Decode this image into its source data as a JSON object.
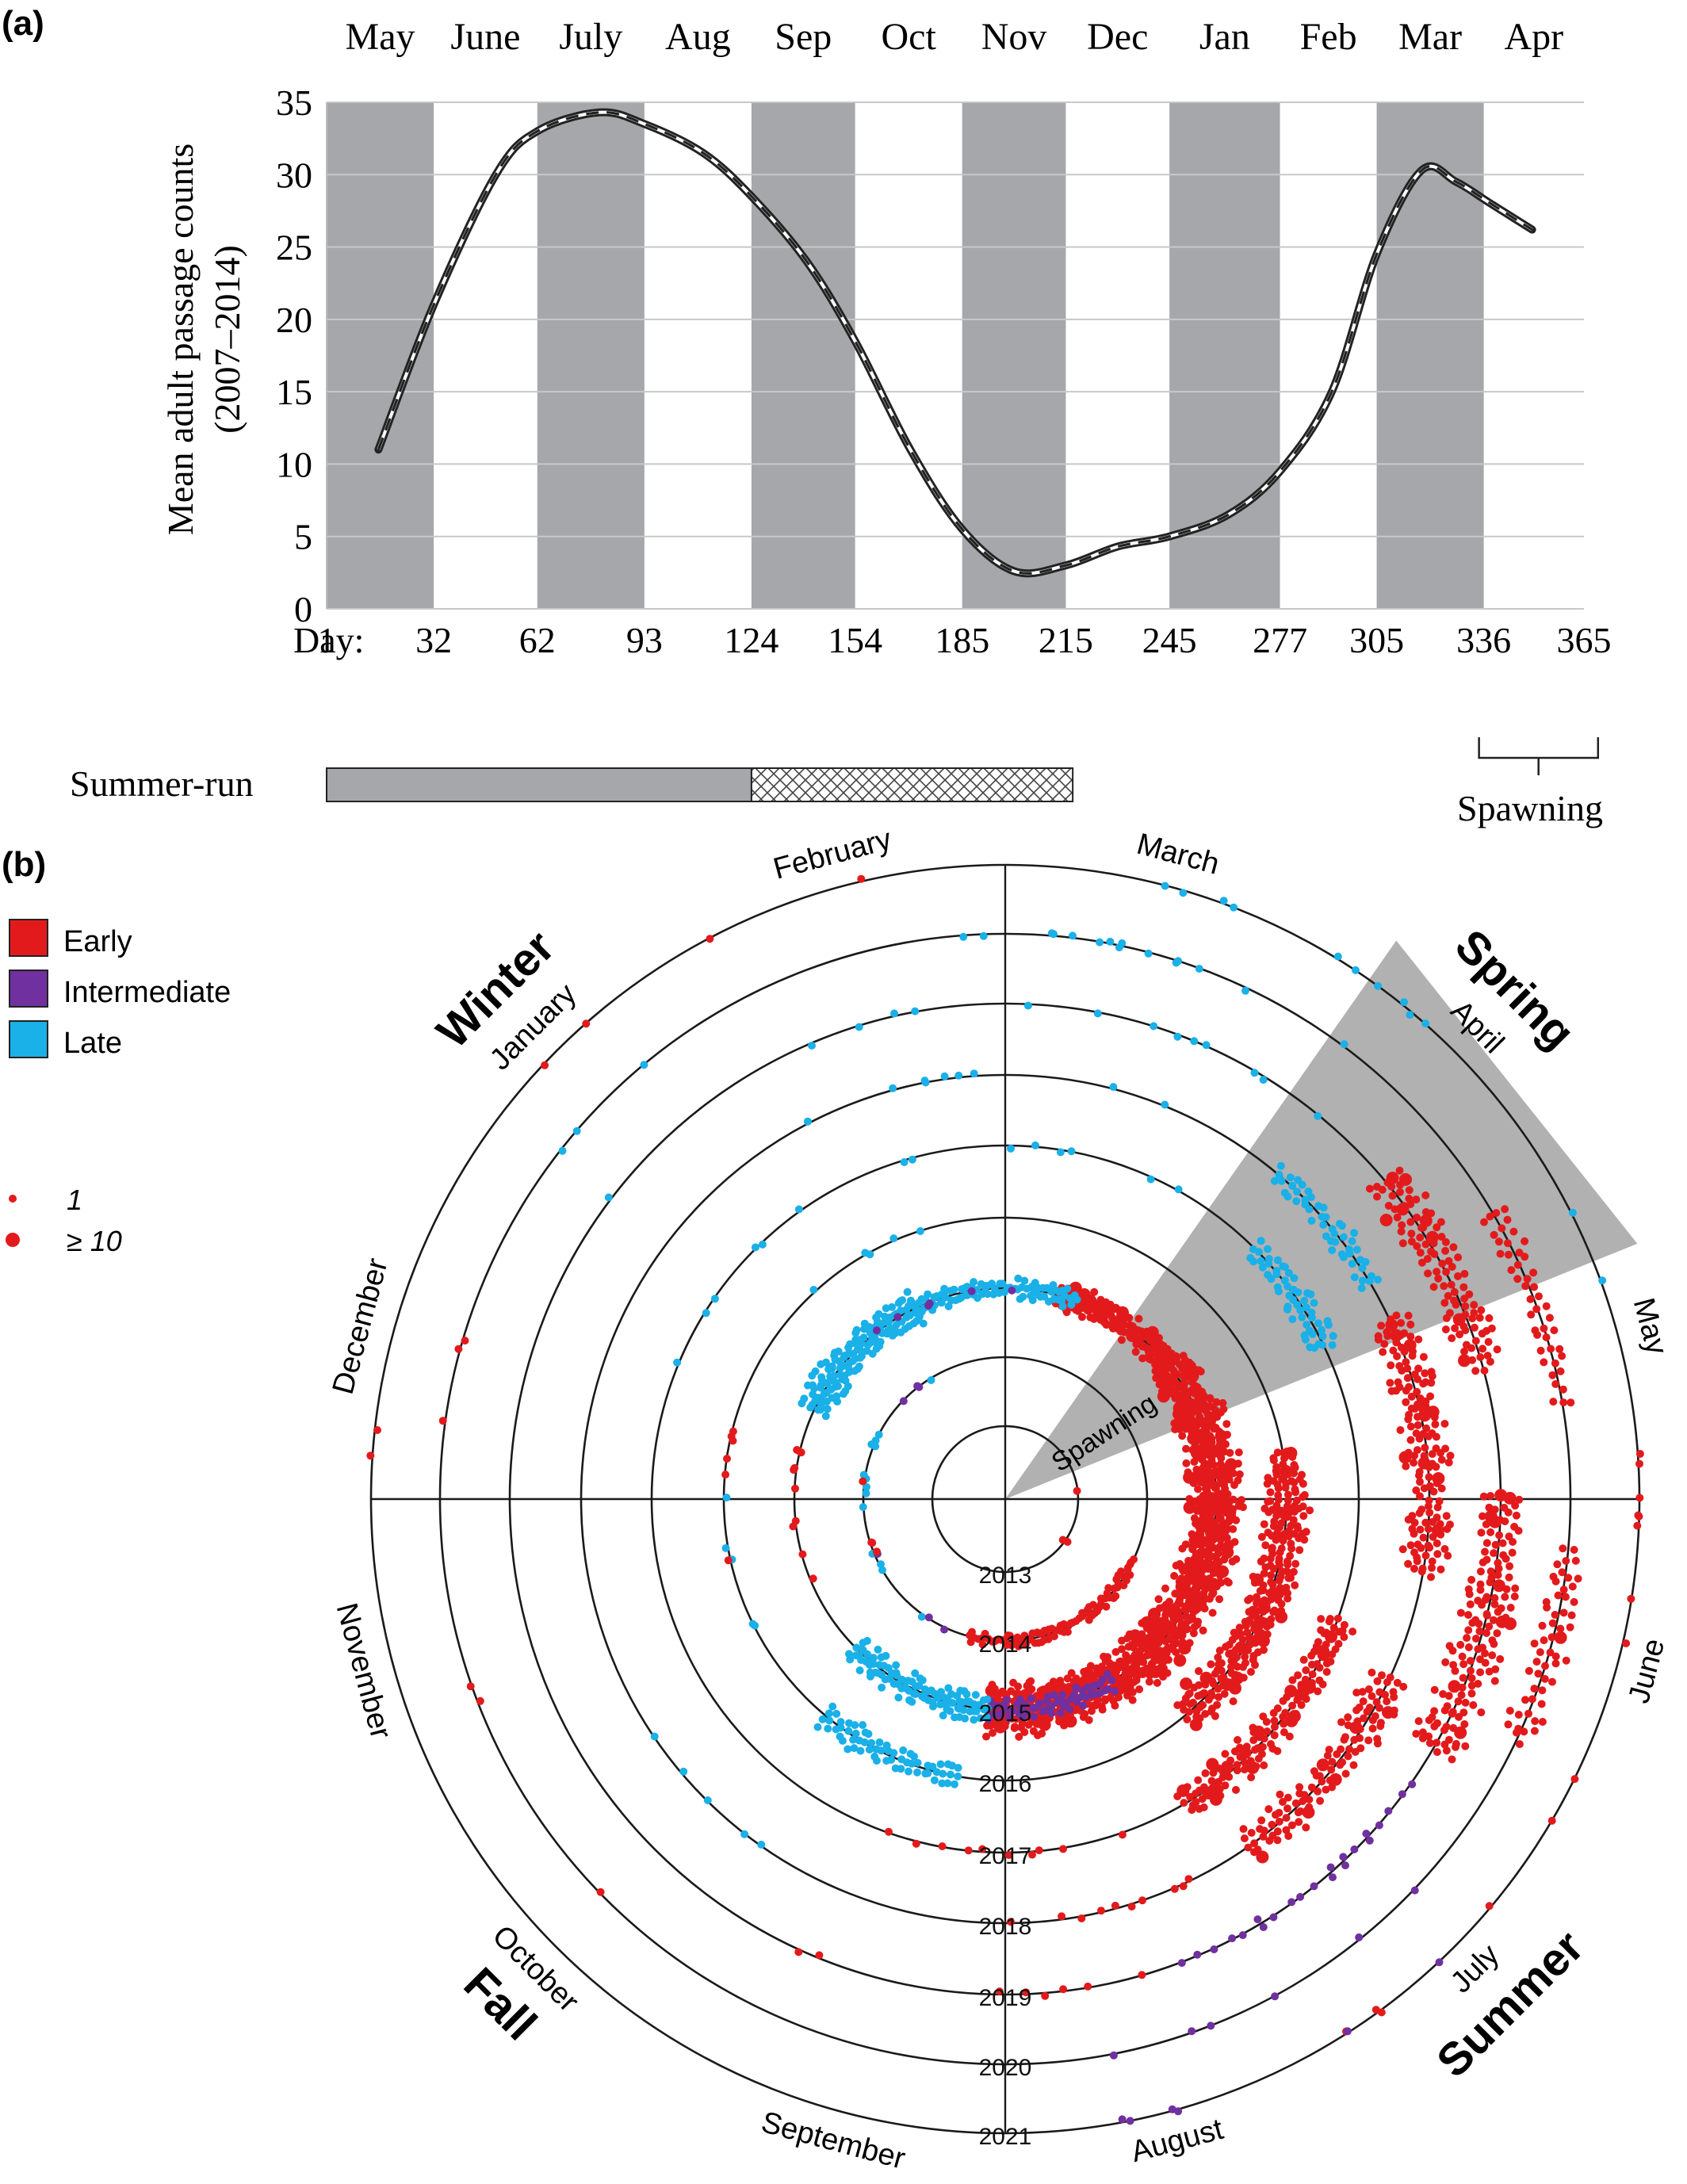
{
  "panel_a": {
    "label": "(a)",
    "ylabel_line1": "Mean adult passage counts",
    "ylabel_line2": "(2007–2014)",
    "xlabel_prefix": "Day:",
    "summer_run_label": "Summer-run",
    "spawning_label": "Spawning"
  },
  "panel_b": {
    "label": "(b)",
    "spawning_wedge_label": "Spawning",
    "seasons": [
      "Winter",
      "Spring",
      "Summer",
      "Fall"
    ],
    "months": [
      "February",
      "March",
      "April",
      "May",
      "June",
      "July",
      "August",
      "September",
      "October",
      "November",
      "December",
      "January"
    ],
    "years": [
      "2013",
      "2014",
      "2015",
      "2016",
      "2017",
      "2018",
      "2019",
      "2020",
      "2021"
    ],
    "legend": {
      "entries": [
        {
          "label": "Early",
          "color": "#e31a1c"
        },
        {
          "label": "Intermediate",
          "color": "#7030a0"
        },
        {
          "label": "Late",
          "color": "#1ab0e8"
        }
      ],
      "size_labels": [
        "1",
        "≥ 10"
      ]
    }
  },
  "chart_data": [
    {
      "type": "line",
      "title": "",
      "xlabel": "Day",
      "ylabel": "Mean adult passage counts (2007–2014)",
      "ylim": [
        0,
        35
      ],
      "xlim": [
        1,
        365
      ],
      "grid": true,
      "month_labels": [
        "May",
        "June",
        "July",
        "Aug",
        "Sep",
        "Oct",
        "Nov",
        "Dec",
        "Jan",
        "Feb",
        "Mar",
        "Apr"
      ],
      "x_ticks": [
        1,
        32,
        62,
        93,
        124,
        154,
        185,
        215,
        245,
        277,
        305,
        336,
        365
      ],
      "y_ticks": [
        0,
        5,
        10,
        15,
        20,
        25,
        30,
        35
      ],
      "shaded_months": [
        "May",
        "July",
        "Sep",
        "Nov",
        "Jan",
        "Mar"
      ],
      "x": [
        16,
        32,
        50,
        62,
        80,
        93,
        110,
        124,
        140,
        154,
        170,
        185,
        200,
        215,
        230,
        245,
        262,
        277,
        292,
        305,
        318,
        328,
        338,
        350
      ],
      "y": [
        11,
        21,
        30,
        33,
        34.3,
        33.5,
        31.5,
        28.5,
        24,
        18.5,
        11,
        5.5,
        2.6,
        3.0,
        4.3,
        5.0,
        6.5,
        9.5,
        15,
        24.5,
        30.3,
        29.5,
        28,
        26.2
      ],
      "bars": {
        "summer_run_solid_days": [
          1,
          124
        ],
        "summer_run_hatched_days": [
          124,
          217
        ],
        "spawning_days": [
          336,
          370
        ]
      }
    },
    {
      "type": "scatter",
      "title": "",
      "coordinate_system": "polar",
      "angular_axis": "month of year",
      "radial_axis": "year (2013 innermost → 2021 outermost)",
      "spawning_sector_months": [
        "mid-March",
        "early May"
      ],
      "series": [
        {
          "name": "Early",
          "color": "#e31a1c"
        },
        {
          "name": "Intermediate",
          "color": "#7030a0"
        },
        {
          "name": "Late",
          "color": "#1ab0e8"
        }
      ],
      "point_size_meaning": {
        "small": "1",
        "large": "≥ 10"
      }
    }
  ]
}
